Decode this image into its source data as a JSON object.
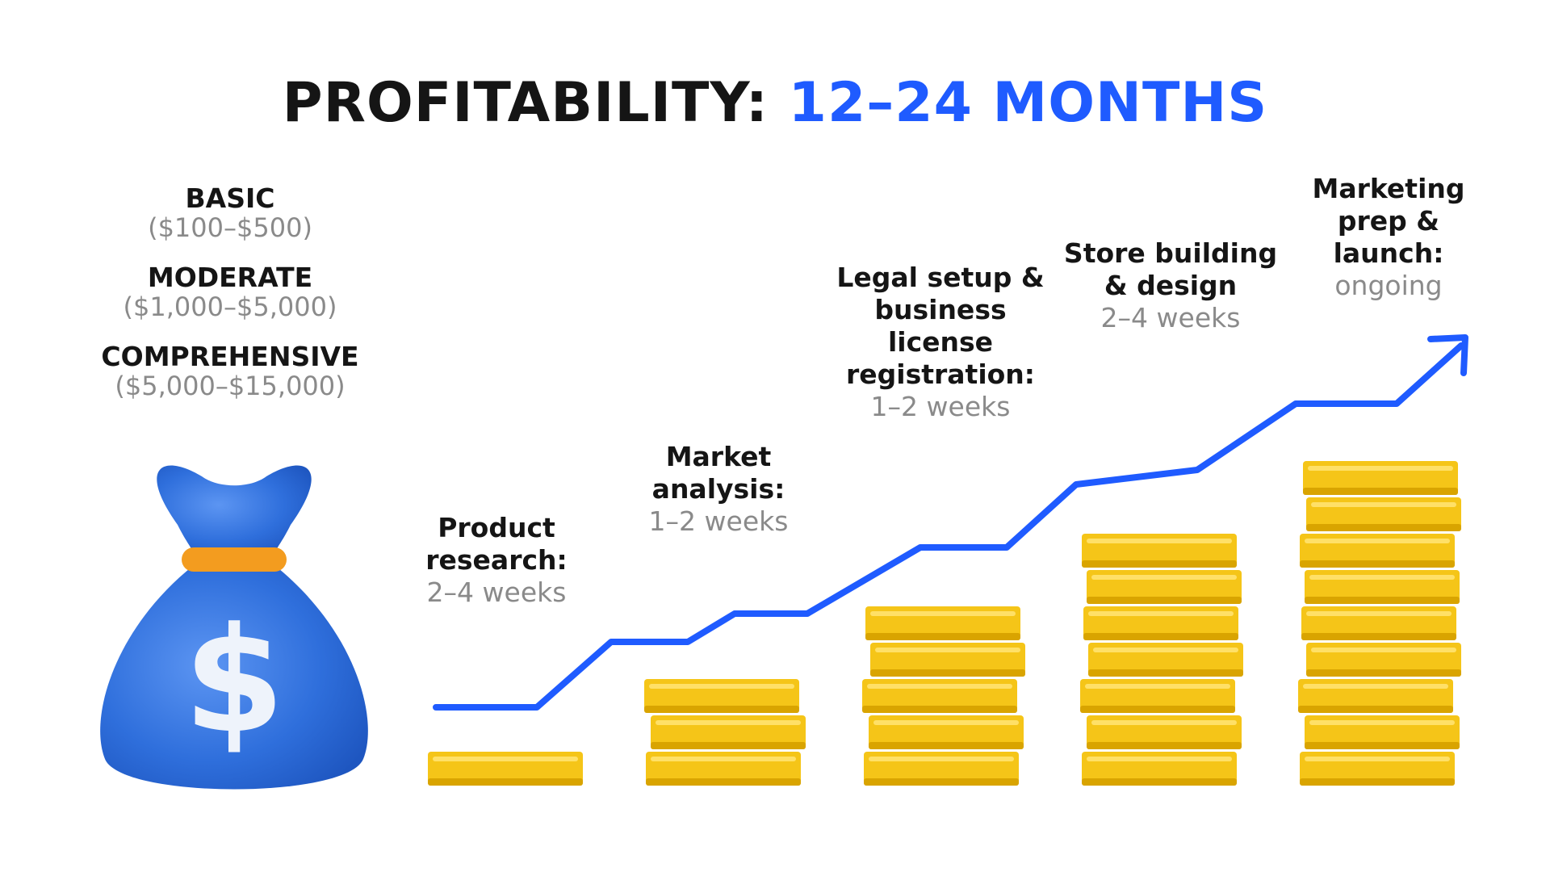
{
  "title": {
    "prefix": "PROFITABILITY:",
    "accent": "12–24 MONTHS"
  },
  "plans": [
    {
      "name": "BASIC",
      "price": "($100–$500)"
    },
    {
      "name": "MODERATE",
      "price": "($1,000–$5,000)"
    },
    {
      "name": "COMPREHENSIVE",
      "price": "($5,000–$15,000)"
    }
  ],
  "bag": {
    "symbol": "$",
    "color": "#3a7be6",
    "tie_color": "#f39c1f"
  },
  "steps": [
    {
      "name": "Product research:",
      "duration": "2–4 weeks",
      "coins": 1
    },
    {
      "name": "Market analysis:",
      "duration": "1–2 weeks",
      "coins": 3
    },
    {
      "name": "Legal setup & business license registration:",
      "duration": "1–2 weeks",
      "coins": 5
    },
    {
      "name": "Store building & design",
      "duration": "2–4 weeks",
      "coins": 7
    },
    {
      "name": "Marketing prep & launch:",
      "duration": "ongoing",
      "coins": 9
    }
  ],
  "colors": {
    "accent": "#1f5bff",
    "coin": "#f5c518",
    "coin_dark": "#d9a400",
    "muted": "#8a8a8a"
  }
}
